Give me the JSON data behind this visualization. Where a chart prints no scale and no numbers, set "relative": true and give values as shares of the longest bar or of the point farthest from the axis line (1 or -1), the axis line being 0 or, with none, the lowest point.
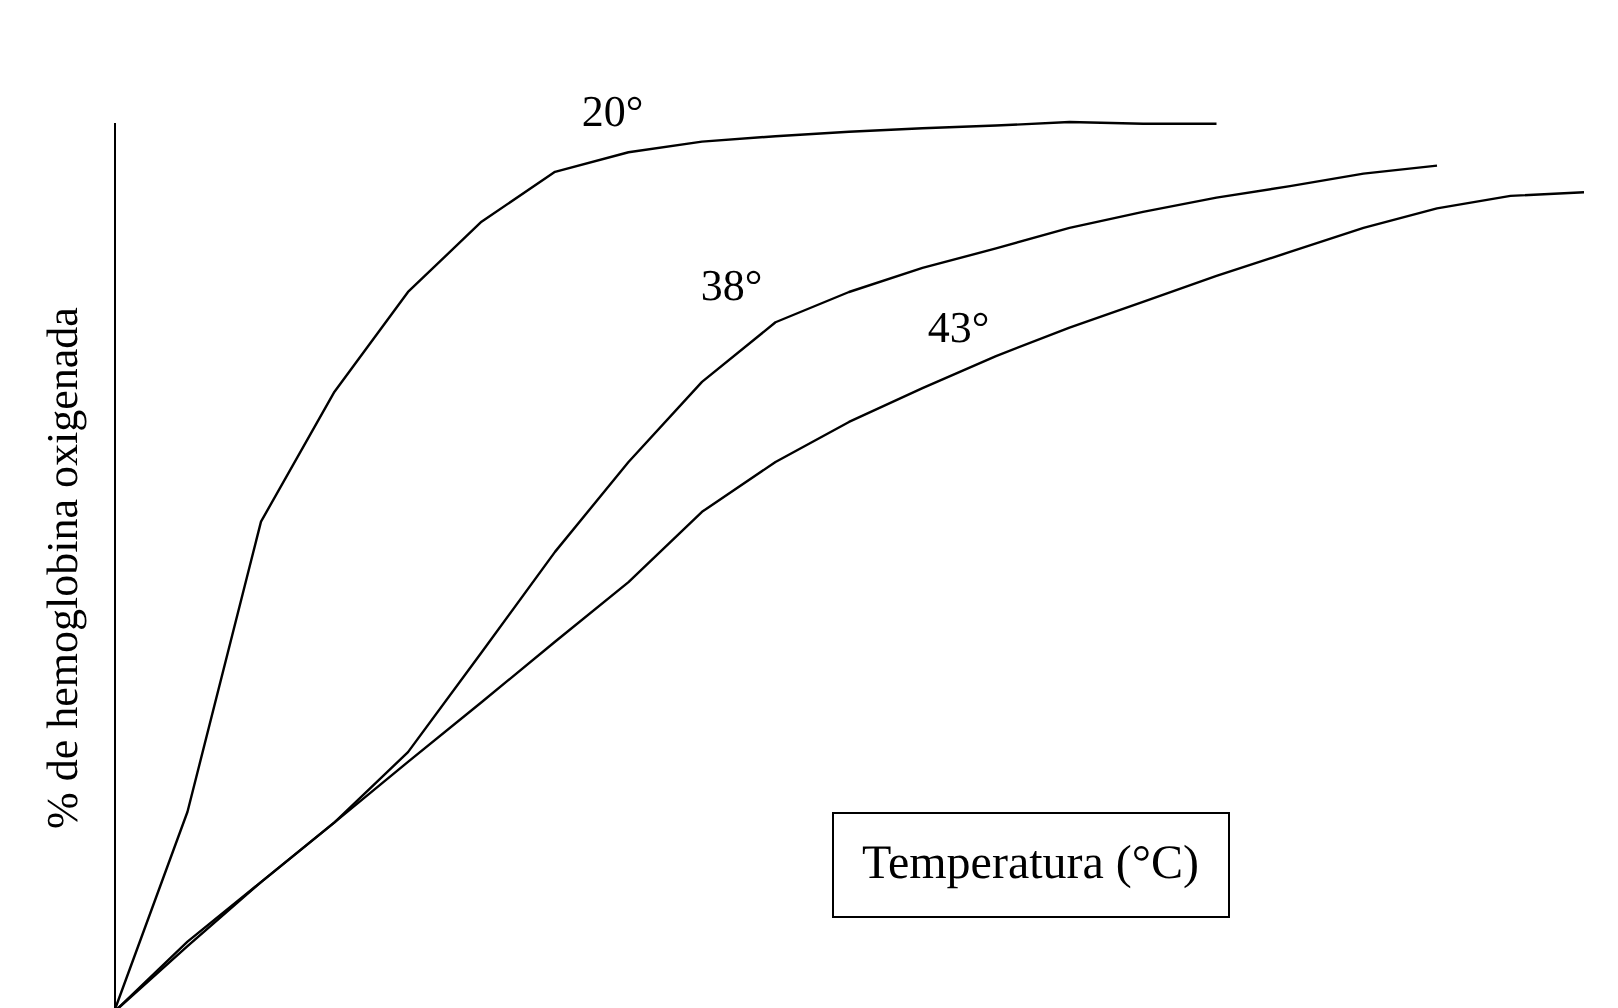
{
  "chart_data": {
    "type": "line",
    "relative": true,
    "ylabel": "% de hemoglobina oxigenada",
    "annotations": [
      "Temperatura (°C)"
    ],
    "grid": false,
    "legend": false,
    "marker": "none",
    "line_style": "solid",
    "categories": [
      null,
      null,
      null,
      null,
      null,
      null,
      null,
      null,
      null,
      null,
      null,
      null,
      null,
      null,
      null,
      null,
      null,
      null,
      null,
      null,
      null
    ],
    "series": [
      {
        "name": "20°",
        "color": "#000000",
        "values": [
          0,
          0.225,
          0.551,
          0.697,
          0.809,
          0.888,
          0.944,
          0.966,
          0.978,
          0.984,
          0.989,
          0.993,
          0.996,
          1,
          0.998,
          0.998,
          null,
          null,
          null,
          null,
          null
        ]
      },
      {
        "name": "38°",
        "color": "#000000",
        "values": [
          0,
          0.079,
          0.146,
          0.213,
          0.292,
          0.404,
          0.517,
          0.618,
          0.708,
          0.775,
          0.809,
          0.836,
          0.858,
          0.881,
          0.899,
          0.915,
          0.928,
          0.942,
          0.951,
          null,
          null
        ]
      },
      {
        "name": "43°",
        "color": "#000000",
        "values": [
          0,
          0.074,
          0.146,
          0.213,
          0.281,
          0.348,
          0.416,
          0.483,
          0.562,
          0.618,
          0.663,
          0.701,
          0.737,
          0.769,
          0.798,
          0.827,
          0.854,
          0.881,
          0.903,
          0.917,
          0.921
        ]
      }
    ]
  }
}
